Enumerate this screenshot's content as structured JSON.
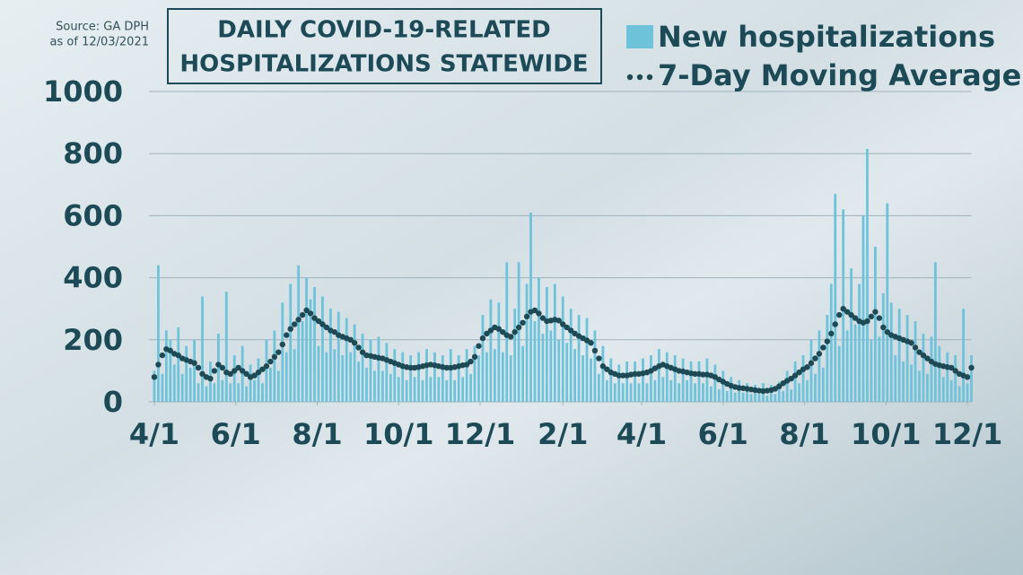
{
  "chart_data": {
    "type": "bar_with_dots",
    "title": [
      "DAILY COVID-19-RELATED",
      "HOSPITALIZATIONS STATEWIDE"
    ],
    "source": [
      "Source: GA DPH",
      "as of 12/03/2021"
    ],
    "x": [
      0,
      3,
      6,
      9,
      12,
      15,
      18,
      21,
      24,
      27,
      30,
      33,
      36,
      39,
      42,
      45,
      48,
      51,
      54,
      57,
      60,
      63,
      66,
      69,
      72,
      75,
      78,
      81,
      84,
      87,
      90,
      93,
      96,
      99,
      102,
      105,
      108,
      111,
      114,
      117,
      120,
      123,
      126,
      129,
      132,
      135,
      138,
      141,
      144,
      147,
      150,
      153,
      156,
      159,
      162,
      165,
      168,
      171,
      174,
      177,
      180,
      183,
      186,
      189,
      192,
      195,
      198,
      201,
      204,
      207,
      210,
      213,
      216,
      219,
      222,
      225,
      228,
      231,
      234,
      237,
      240,
      243,
      246,
      249,
      252,
      255,
      258,
      261,
      264,
      267,
      270,
      273,
      276,
      279,
      282,
      285,
      288,
      291,
      294,
      297,
      300,
      303,
      306,
      309,
      312,
      315,
      318,
      321,
      324,
      327,
      330,
      333,
      336,
      339,
      342,
      345,
      348,
      351,
      354,
      357,
      360,
      363,
      366,
      369,
      372,
      375,
      378,
      381,
      384,
      387,
      390,
      393,
      396,
      399,
      402,
      405,
      408,
      411,
      414,
      417,
      420,
      423,
      426,
      429,
      432,
      435,
      438,
      441,
      444,
      447,
      450,
      453,
      456,
      459,
      462,
      465,
      468,
      471,
      474,
      477,
      480,
      483,
      486,
      489,
      492,
      495,
      498,
      501,
      504,
      507,
      510,
      513,
      516,
      519,
      522,
      525,
      528,
      531,
      534,
      537,
      540,
      543,
      546,
      549,
      552,
      555,
      558,
      561,
      564,
      567,
      570,
      573,
      576,
      579,
      582,
      585,
      588,
      591,
      594,
      597,
      600,
      603,
      606,
      609,
      612
    ],
    "xlim": [
      -4,
      614
    ],
    "xticks": [
      {
        "value": 0,
        "label": "4/1"
      },
      {
        "value": 61,
        "label": "6/1"
      },
      {
        "value": 122,
        "label": "8/1"
      },
      {
        "value": 183,
        "label": "10/1"
      },
      {
        "value": 244,
        "label": "12/1"
      },
      {
        "value": 306,
        "label": "2/1"
      },
      {
        "value": 365,
        "label": "4/1"
      },
      {
        "value": 426,
        "label": "6/1"
      },
      {
        "value": 487,
        "label": "8/1"
      },
      {
        "value": 548,
        "label": "10/1"
      },
      {
        "value": 609,
        "label": "12/1"
      }
    ],
    "ylim": [
      0,
      1000
    ],
    "yticks": [
      0,
      200,
      400,
      600,
      800,
      1000
    ],
    "grid": true,
    "series": [
      {
        "name": "New hospitalizations",
        "color": "#6ec3da",
        "values": [
          100,
          440,
          90,
          230,
          200,
          120,
          240,
          90,
          180,
          110,
          200,
          60,
          340,
          50,
          130,
          60,
          220,
          70,
          355,
          60,
          150,
          60,
          180,
          50,
          120,
          70,
          140,
          60,
          200,
          110,
          230,
          100,
          320,
          160,
          380,
          170,
          440,
          260,
          400,
          330,
          370,
          180,
          340,
          160,
          300,
          170,
          290,
          150,
          270,
          160,
          250,
          130,
          220,
          110,
          200,
          100,
          210,
          100,
          190,
          90,
          170,
          80,
          160,
          70,
          150,
          80,
          160,
          70,
          170,
          80,
          160,
          80,
          150,
          70,
          170,
          70,
          150,
          80,
          170,
          90,
          180,
          150,
          280,
          160,
          330,
          170,
          320,
          160,
          450,
          150,
          300,
          450,
          180,
          380,
          610,
          260,
          400,
          220,
          370,
          230,
          380,
          200,
          340,
          190,
          300,
          170,
          280,
          150,
          270,
          140,
          230,
          90,
          180,
          70,
          140,
          60,
          120,
          60,
          130,
          60,
          130,
          60,
          140,
          60,
          150,
          70,
          170,
          80,
          160,
          70,
          150,
          60,
          140,
          70,
          130,
          60,
          130,
          60,
          140,
          50,
          120,
          40,
          100,
          35,
          80,
          30,
          70,
          30,
          60,
          25,
          55,
          25,
          60,
          20,
          55,
          25,
          65,
          35,
          100,
          40,
          130,
          60,
          150,
          70,
          200,
          90,
          230,
          110,
          280,
          380,
          670,
          180,
          620,
          230,
          430,
          250,
          380,
          600,
          815,
          200,
          500,
          210,
          350,
          640,
          320,
          150,
          300,
          130,
          280,
          120,
          260,
          100,
          220,
          90,
          210,
          450,
          180,
          80,
          160,
          70,
          150,
          50,
          300,
          60,
          150
        ]
      },
      {
        "name": "7-Day Moving Average",
        "color": "#1e4a55",
        "values": [
          80,
          120,
          150,
          170,
          165,
          155,
          150,
          140,
          135,
          130,
          125,
          110,
          90,
          80,
          75,
          100,
          120,
          110,
          95,
          90,
          100,
          110,
          100,
          90,
          80,
          85,
          95,
          105,
          115,
          130,
          145,
          160,
          185,
          215,
          235,
          250,
          265,
          280,
          295,
          285,
          270,
          260,
          250,
          240,
          230,
          225,
          215,
          210,
          205,
          200,
          190,
          175,
          160,
          150,
          148,
          145,
          142,
          140,
          135,
          130,
          125,
          120,
          115,
          112,
          110,
          110,
          112,
          115,
          118,
          120,
          118,
          115,
          112,
          110,
          110,
          112,
          115,
          118,
          120,
          130,
          145,
          180,
          205,
          220,
          230,
          240,
          235,
          225,
          215,
          210,
          225,
          240,
          255,
          275,
          290,
          295,
          285,
          270,
          260,
          262,
          265,
          262,
          250,
          240,
          230,
          220,
          212,
          205,
          198,
          190,
          165,
          140,
          115,
          105,
          95,
          90,
          85,
          85,
          85,
          88,
          90,
          90,
          92,
          95,
          100,
          108,
          115,
          120,
          115,
          110,
          105,
          100,
          98,
          95,
          92,
          90,
          90,
          88,
          88,
          85,
          80,
          72,
          65,
          58,
          52,
          48,
          45,
          44,
          42,
          40,
          38,
          36,
          35,
          36,
          38,
          42,
          50,
          60,
          68,
          75,
          85,
          95,
          105,
          112,
          125,
          140,
          155,
          175,
          195,
          220,
          250,
          280,
          300,
          290,
          280,
          270,
          260,
          255,
          260,
          275,
          290,
          270,
          240,
          225,
          215,
          210,
          205,
          200,
          195,
          190,
          175,
          160,
          150,
          140,
          130,
          122,
          118,
          115,
          112,
          110,
          100,
          90,
          85,
          80,
          110
        ]
      }
    ]
  }
}
